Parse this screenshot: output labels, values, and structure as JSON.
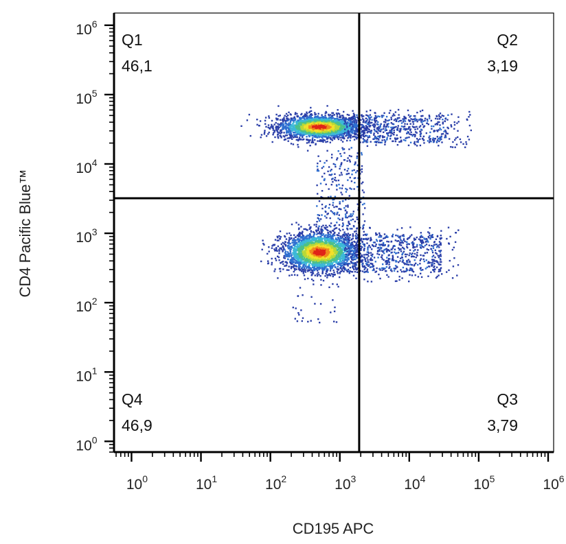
{
  "chart_data": {
    "type": "scatter",
    "subtype": "flow-cytometry-density-dot-plot",
    "xlabel": "CD195 APC",
    "ylabel": "CD4 Pacific Blue™",
    "x_scale": "log",
    "y_scale": "log",
    "xlim": [
      0.56,
      1200000
    ],
    "ylim": [
      0.7,
      1500000
    ],
    "x_ticks": [
      {
        "base": "10",
        "exp": "0",
        "value": 1
      },
      {
        "base": "10",
        "exp": "1",
        "value": 10
      },
      {
        "base": "10",
        "exp": "2",
        "value": 100
      },
      {
        "base": "10",
        "exp": "3",
        "value": 1000
      },
      {
        "base": "10",
        "exp": "4",
        "value": 10000
      },
      {
        "base": "10",
        "exp": "5",
        "value": 100000
      },
      {
        "base": "10",
        "exp": "6",
        "value": 1000000
      }
    ],
    "y_ticks": [
      {
        "base": "10",
        "exp": "0",
        "value": 1
      },
      {
        "base": "10",
        "exp": "1",
        "value": 10
      },
      {
        "base": "10",
        "exp": "2",
        "value": 100
      },
      {
        "base": "10",
        "exp": "3",
        "value": 1000
      },
      {
        "base": "10",
        "exp": "4",
        "value": 10000
      },
      {
        "base": "10",
        "exp": "5",
        "value": 100000
      },
      {
        "base": "10",
        "exp": "6",
        "value": 1000000
      }
    ],
    "gates": {
      "x_threshold": 1900,
      "y_threshold": 3200
    },
    "quadrants": [
      {
        "name": "Q1",
        "value": "46,1",
        "position": "top-left"
      },
      {
        "name": "Q2",
        "value": "3,19",
        "position": "top-right"
      },
      {
        "name": "Q3",
        "value": "3,79",
        "position": "bottom-right"
      },
      {
        "name": "Q4",
        "value": "46,9",
        "position": "bottom-left"
      }
    ],
    "populations": [
      {
        "center_x": 500,
        "center_y": 35000,
        "description_color_peak": "red"
      },
      {
        "center_x": 500,
        "center_y": 550,
        "description_color_peak": "yellow"
      }
    ],
    "density_colors": [
      "#2b3fa8",
      "#2f6fd0",
      "#3cb8d8",
      "#4cc08a",
      "#b8d838",
      "#f2e02a",
      "#f08a1c",
      "#e02418"
    ],
    "grid": false
  }
}
